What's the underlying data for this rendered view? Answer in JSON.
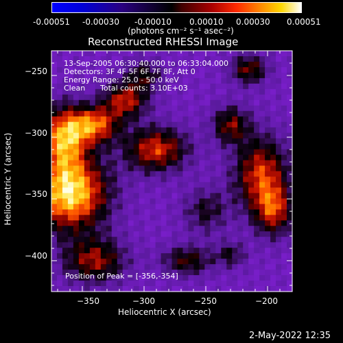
{
  "colorbar": {
    "ticks": [
      "-0.00051",
      "-0.00030",
      "-0.00010",
      "0.00010",
      "0.00030",
      "0.00051"
    ],
    "tick_values": [
      -0.00051,
      -0.0003,
      -0.0001,
      0.0001,
      0.0003,
      0.00051
    ],
    "range": [
      -0.00051,
      0.00051
    ],
    "units_label": "(photons cm⁻² s⁻¹ asec⁻²)"
  },
  "chart_data": {
    "type": "heatmap",
    "title": "Reconstructed RHESSI Image",
    "xlabel": "Heliocentric X (arcsec)",
    "ylabel": "Heliocentric Y (arcsec)",
    "xlim": [
      -375,
      -180
    ],
    "ylim": [
      -425,
      -230
    ],
    "x_ticks": [
      -350,
      -300,
      -250,
      -200
    ],
    "y_ticks": [
      -250,
      -300,
      -350,
      -400
    ],
    "x_tick_labels": [
      "−350",
      "−300",
      "−250",
      "−200"
    ],
    "y_tick_labels": [
      "−250",
      "−300",
      "−350",
      "−400"
    ],
    "annotations": {
      "time": "13-Sep-2005 06:30:40.000 to 06:33:04.000",
      "detectors": "Detectors: 3F 4F 5F 6F 7F 8F, Att 0",
      "energy": "Energy Range: 25.0 - 50.0 keV",
      "method": "Clean",
      "counts": "Total counts: 3.10E+03",
      "peak": "Position of Peak = [-356,-354]"
    },
    "peak_position": [
      -356,
      -354
    ],
    "colormap": "blue-black-red-yellow-white"
  },
  "footer": {
    "timestamp": "2-May-2022 12:35"
  }
}
